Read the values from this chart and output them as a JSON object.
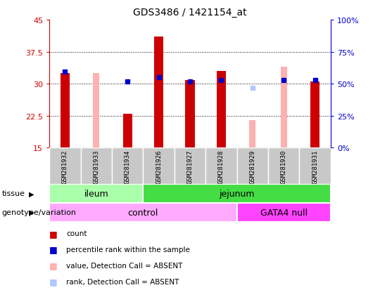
{
  "title": "GDS3486 / 1421154_at",
  "samples": [
    "GSM281932",
    "GSM281933",
    "GSM281934",
    "GSM281926",
    "GSM281927",
    "GSM281928",
    "GSM281929",
    "GSM281930",
    "GSM281931"
  ],
  "ylim_left": [
    15,
    45
  ],
  "ylim_right": [
    0,
    100
  ],
  "yticks_left": [
    15,
    22.5,
    30,
    37.5,
    45
  ],
  "yticks_right": [
    0,
    25,
    50,
    75,
    100
  ],
  "red_bars": [
    32.5,
    0,
    23.0,
    41.0,
    30.8,
    33.0,
    0,
    0,
    30.5
  ],
  "pink_bars": [
    0,
    32.5,
    0,
    0,
    0,
    0,
    21.5,
    34.0,
    0
  ],
  "blue_squares": [
    32.8,
    0,
    30.5,
    31.5,
    30.5,
    30.8,
    0,
    30.8,
    30.8
  ],
  "lightblue_squares": [
    0,
    0,
    0,
    0,
    0,
    0,
    29.0,
    0,
    0
  ],
  "tissue_groups": [
    {
      "label": "ileum",
      "start": 0,
      "end": 3,
      "color": "#AAFFAA"
    },
    {
      "label": "jejunum",
      "start": 3,
      "end": 9,
      "color": "#44DD44"
    }
  ],
  "genotype_groups": [
    {
      "label": "control",
      "start": 0,
      "end": 6,
      "color": "#FFAAFF"
    },
    {
      "label": "GATA4 null",
      "start": 6,
      "end": 9,
      "color": "#FF44FF"
    }
  ],
  "legend_colors": [
    "#CC0000",
    "#0000CC",
    "#FFB0B0",
    "#B0C8FF"
  ],
  "legend_labels": [
    "count",
    "percentile rank within the sample",
    "value, Detection Call = ABSENT",
    "rank, Detection Call = ABSENT"
  ],
  "red_bar_color": "#CC0000",
  "pink_bar_color": "#FFB0B0",
  "blue_sq_color": "#0000CC",
  "lightblue_sq_color": "#B0C8FF",
  "bar_width": 0.3,
  "pink_bar_width": 0.2,
  "blue_sq_size": 5,
  "background_color": "#ffffff",
  "left_axis_color": "#CC0000",
  "right_axis_color": "#0000CC",
  "sample_bg_color": "#C8C8C8"
}
